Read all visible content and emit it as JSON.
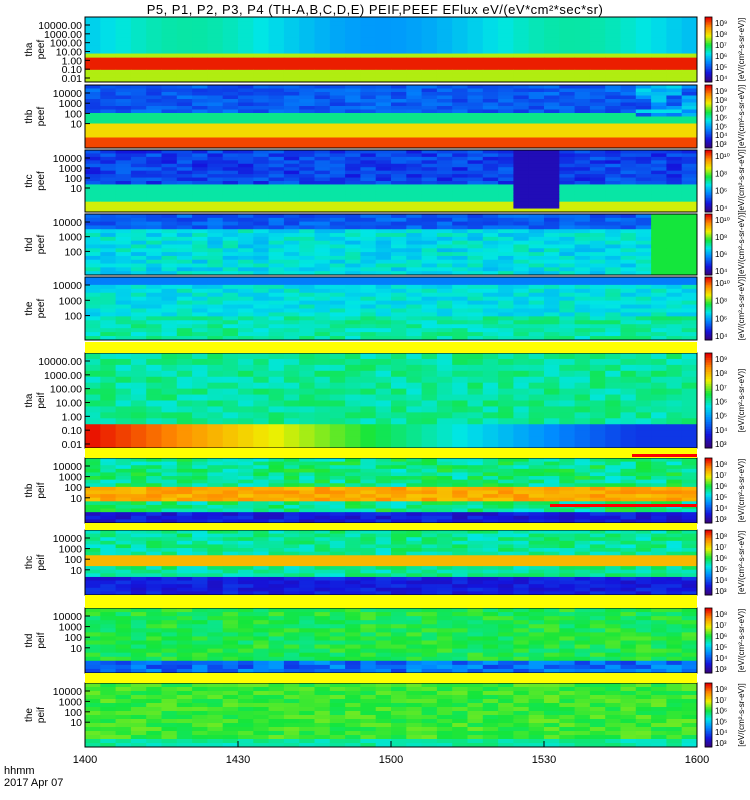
{
  "title": "P5, P1, P2, P3, P4 (TH-A,B,C,D,E) PEIF,PEEF EFlux eV/(eV*cm²*sec*sr)",
  "footer": {
    "time_format": "hhmm",
    "date": "2017 Apr 07"
  },
  "colorbar_units": "[eV/(cm²-s-sr-eV)]",
  "colors": {
    "background": "#ffffff",
    "separator_band": "#ffff00",
    "saturation_bar": "#ff0000"
  },
  "chart_data": [
    {
      "type": "heatmap",
      "ylabel": "tha peef",
      "yscale": "log",
      "yticks": [
        "10000.00",
        "1000.00",
        "100.00",
        "10.00",
        "1.00",
        "0.10",
        "0.01"
      ],
      "cbar_ticks": [
        "10⁹",
        "10⁸",
        "10⁷",
        "10⁶",
        "10⁵",
        "10⁴"
      ],
      "time_cols": 40,
      "energy_rows": 16,
      "profile": "low_energy_hot_band"
    },
    {
      "type": "heatmap",
      "ylabel": "thb peef",
      "yscale": "log",
      "yticks": [
        "10000",
        "1000",
        "100",
        "10"
      ],
      "cbar_ticks": [
        "10⁹",
        "10⁸",
        "10⁷",
        "10⁶",
        "10⁵",
        "10⁴",
        "10³"
      ],
      "time_cols": 40,
      "energy_rows": 18,
      "profile": "hot_bottom_noisy_top"
    },
    {
      "type": "heatmap",
      "ylabel": "thc peef",
      "yscale": "log",
      "yticks": [
        "10000",
        "1000",
        "100",
        "10"
      ],
      "cbar_ticks": [
        "10¹⁰",
        "10⁸",
        "10⁶",
        "10⁴"
      ],
      "time_cols": 40,
      "energy_rows": 18,
      "profile": "cool_top_hot_bottom"
    },
    {
      "type": "heatmap",
      "ylabel": "thd peef",
      "yscale": "log",
      "yticks": [
        "10000",
        "1000",
        "100"
      ],
      "cbar_ticks": [
        "10¹⁰",
        "10⁸",
        "10⁶",
        "10⁴"
      ],
      "time_cols": 40,
      "energy_rows": 16,
      "profile": "cyan_field"
    },
    {
      "type": "heatmap",
      "ylabel": "the peef",
      "yscale": "log",
      "yticks": [
        "10000",
        "1000",
        "100"
      ],
      "cbar_ticks": [
        "10¹⁰",
        "10⁸",
        "10⁶",
        "10⁴"
      ],
      "time_cols": 40,
      "energy_rows": 16,
      "profile": "cyan_field_low"
    },
    {
      "type": "heatmap",
      "ylabel": "tha peif",
      "yscale": "log",
      "yticks": [
        "10000.00",
        "1000.00",
        "100.00",
        "10.00",
        "1.00",
        "0.10",
        "0.01"
      ],
      "cbar_ticks": [
        "10⁹",
        "10⁸",
        "10⁷",
        "10⁶",
        "10⁵",
        "10⁴",
        "10³"
      ],
      "time_cols": 40,
      "energy_rows": 16,
      "profile": "ion_cold_beam"
    },
    {
      "type": "heatmap",
      "ylabel": "thb peif",
      "yscale": "log",
      "yticks": [
        "10000",
        "1000",
        "100",
        "10"
      ],
      "cbar_ticks": [
        "10⁸",
        "10⁷",
        "10⁶",
        "10⁵",
        "10⁴",
        "10³"
      ],
      "time_cols": 40,
      "energy_rows": 18,
      "profile": "ion_middle_band"
    },
    {
      "type": "heatmap",
      "ylabel": "thc peif",
      "yscale": "log",
      "yticks": [
        "10000",
        "1000",
        "100",
        "10"
      ],
      "cbar_ticks": [
        "10⁸",
        "10⁷",
        "10⁶",
        "10⁵",
        "10⁴",
        "10³"
      ],
      "time_cols": 40,
      "energy_rows": 18,
      "profile": "ion_middle_band_dark"
    },
    {
      "type": "heatmap",
      "ylabel": "thd peif",
      "yscale": "log",
      "yticks": [
        "10000",
        "1000",
        "100",
        "10"
      ],
      "cbar_ticks": [
        "10⁸",
        "10⁷",
        "10⁶",
        "10⁵",
        "10⁴",
        "10³"
      ],
      "time_cols": 40,
      "energy_rows": 16,
      "profile": "ion_green"
    },
    {
      "type": "heatmap",
      "ylabel": "the peif",
      "yscale": "log",
      "yticks": [
        "10000",
        "1000",
        "100",
        "10"
      ],
      "cbar_ticks": [
        "10⁸",
        "10⁷",
        "10⁶",
        "10⁵",
        "10⁴",
        "10³"
      ],
      "time_cols": 40,
      "energy_rows": 16,
      "profile": "ion_green_plain"
    }
  ],
  "xaxis": {
    "ticks": [
      "1400",
      "1430",
      "1500",
      "1530",
      "1600"
    ]
  }
}
